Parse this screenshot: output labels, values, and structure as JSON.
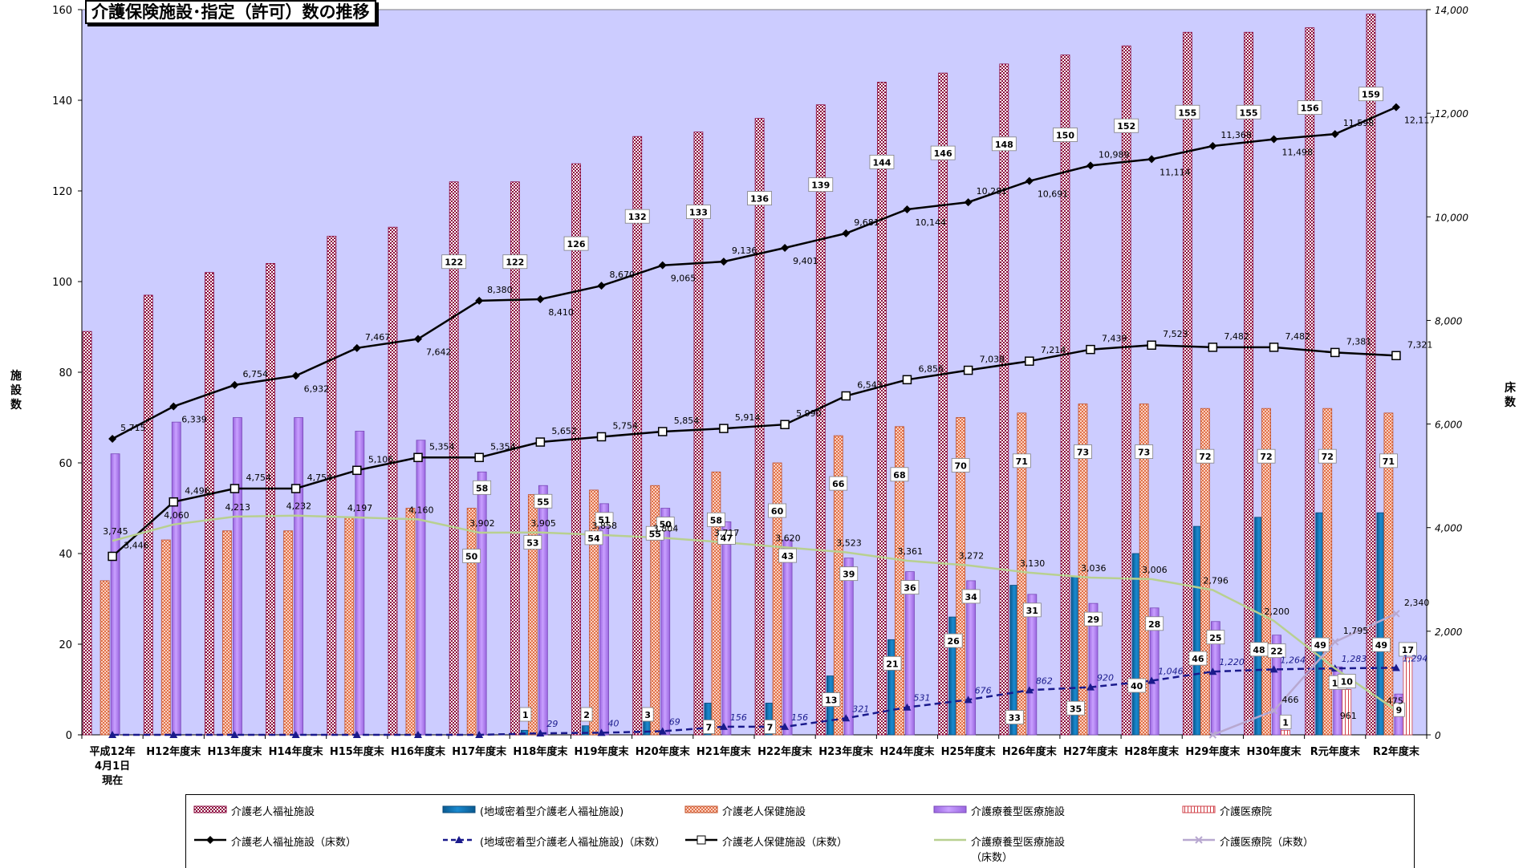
{
  "chart_data": {
    "type": "bar",
    "title": "介護保険施設･指定（許可）数の推移",
    "y_left_label": "施設数",
    "y_right_label": "床数",
    "y_left_range": [
      0,
      160
    ],
    "y_left_ticks": [
      "0",
      "20",
      "40",
      "60",
      "80",
      "100",
      "120",
      "140",
      "160"
    ],
    "y_right_range": [
      0,
      14000
    ],
    "y_right_ticks": [
      "0",
      "2,000",
      "4,000",
      "6,000",
      "8,000",
      "10,000",
      "12,000",
      "14,000"
    ],
    "categories": [
      [
        "平成12年",
        "4月1日",
        "現在"
      ],
      [
        "H12年度末"
      ],
      [
        "H13年度末"
      ],
      [
        "H14年度末"
      ],
      [
        "H15年度末"
      ],
      [
        "H16年度末"
      ],
      [
        "H17年度末"
      ],
      [
        "H18年度末"
      ],
      [
        "H19年度末"
      ],
      [
        "H20年度末"
      ],
      [
        "H21年度末"
      ],
      [
        "H22年度末"
      ],
      [
        "H23年度末"
      ],
      [
        "H24年度末"
      ],
      [
        "H25年度末"
      ],
      [
        "H26年度末"
      ],
      [
        "H27年度末"
      ],
      [
        "H28年度末"
      ],
      [
        "H29年度末"
      ],
      [
        "H30年度末"
      ],
      [
        "R元年度末"
      ],
      [
        "R2年度末"
      ]
    ],
    "grid": false,
    "legend_position": "bottom",
    "bar_series": [
      {
        "name": "介護老人福祉施設",
        "color": "#8b0a3c",
        "values": [
          89,
          97,
          102,
          104,
          110,
          112,
          122,
          122,
          126,
          132,
          133,
          136,
          139,
          144,
          146,
          148,
          150,
          152,
          155,
          155,
          156,
          159
        ],
        "labels": [
          null,
          null,
          null,
          null,
          null,
          null,
          "122",
          "122",
          "126",
          "132",
          "133",
          "136",
          "139",
          "144",
          "146",
          "148",
          "150",
          "152",
          "155",
          "155",
          "156",
          "159"
        ]
      },
      {
        "name": "(地域密着型介護老人福祉施設)",
        "color": "#0a6aa8",
        "values": [
          0,
          0,
          0,
          0,
          0,
          0,
          0,
          1,
          2,
          3,
          7,
          7,
          13,
          21,
          26,
          33,
          35,
          40,
          46,
          48,
          49,
          49
        ],
        "labels": [
          null,
          null,
          null,
          null,
          null,
          null,
          null,
          "1",
          "2",
          "3",
          "7",
          "7",
          "13",
          "21",
          "26",
          "33",
          "35",
          "40",
          "46",
          "48",
          "49",
          "49"
        ]
      },
      {
        "name": "介護老人保健施設",
        "color": "#e07048",
        "values": [
          34,
          43,
          45,
          45,
          48,
          50,
          50,
          53,
          54,
          55,
          58,
          60,
          66,
          68,
          70,
          71,
          73,
          73,
          72,
          72,
          72,
          71
        ],
        "labels": [
          null,
          null,
          null,
          null,
          null,
          null,
          "50",
          "53",
          "54",
          "55",
          "58",
          "60",
          "66",
          "68",
          "70",
          "71",
          "73",
          "73",
          "72",
          "72",
          "72",
          "71"
        ]
      },
      {
        "name": "介護療養型医療施設",
        "color": "#b184f0",
        "values": [
          62,
          69,
          70,
          70,
          67,
          65,
          58,
          55,
          51,
          50,
          47,
          43,
          39,
          36,
          34,
          31,
          29,
          28,
          25,
          22,
          15,
          9
        ],
        "labels": [
          null,
          null,
          null,
          null,
          null,
          null,
          "58",
          "55",
          "51",
          "50",
          "47",
          "43",
          "39",
          "36",
          "34",
          "31",
          "29",
          "28",
          "25",
          "22",
          "15",
          "9"
        ]
      },
      {
        "name": "介護医療院",
        "color": "#d04048",
        "values": [
          null,
          null,
          null,
          null,
          null,
          null,
          null,
          null,
          null,
          null,
          null,
          null,
          null,
          null,
          null,
          null,
          null,
          null,
          null,
          1,
          10,
          17
        ],
        "labels": [
          null,
          null,
          null,
          null,
          null,
          null,
          null,
          null,
          null,
          null,
          null,
          null,
          null,
          null,
          null,
          null,
          null,
          null,
          null,
          "1",
          "10",
          "17"
        ]
      }
    ],
    "line_series": [
      {
        "name": "介護老人福祉施設（床数）",
        "color": "#000000",
        "style": "solid",
        "marker": "diamond",
        "values": [
          5715,
          6339,
          6754,
          6932,
          7467,
          7642,
          8380,
          8410,
          8670,
          9065,
          9136,
          9401,
          9681,
          10144,
          10281,
          10691,
          10989,
          11114,
          11368,
          11498,
          11598,
          12117
        ],
        "labels": [
          "5,715",
          "6,339",
          "6,754",
          "6,932",
          "7,467",
          "7,642",
          "8,380",
          "8,410",
          "8,670",
          "9,065",
          "9,136",
          "9,401",
          "9,681",
          "10,144",
          "10,281",
          "10,691",
          "10,989",
          "11,114",
          "11,368",
          "11,498",
          "11,598",
          "12,117"
        ]
      },
      {
        "name": "(地域密着型介護老人福祉施設)（床数）",
        "color": "#1a1a8c",
        "style": "dashed",
        "marker": "triangle",
        "values": [
          0,
          0,
          0,
          0,
          0,
          0,
          0,
          29,
          40,
          69,
          156,
          156,
          321,
          531,
          676,
          862,
          920,
          1046,
          1220,
          1264,
          1283,
          1294
        ],
        "labels": [
          null,
          null,
          null,
          null,
          null,
          null,
          null,
          "29",
          "40",
          "69",
          "156",
          "156",
          "321",
          "531",
          "676",
          "862",
          "920",
          "1,046",
          "1,220",
          "1,264",
          "1,283",
          "1,294"
        ]
      },
      {
        "name": "介護老人保健施設（床数）",
        "color": "#000000",
        "style": "solid",
        "marker": "square",
        "values": [
          3446,
          4496,
          4754,
          4754,
          5106,
          5354,
          5354,
          5652,
          5754,
          5854,
          5914,
          5990,
          6543,
          6856,
          7038,
          7214,
          7439,
          7523,
          7482,
          7482,
          7381,
          7321
        ],
        "labels": [
          "3,446",
          "4,496",
          "4,754",
          "4,754",
          "5,106",
          "5,354",
          "5,354",
          "5,652",
          "5,754",
          "5,854",
          "5,914",
          "5,990",
          "6,543",
          "6,856",
          "7,038",
          "7,214",
          "7,439",
          "7,523",
          "7,482",
          "7,482",
          "7,381",
          "7,321"
        ]
      },
      {
        "name": "介護療養型医療施設\n（床数）",
        "color": "#b8d090",
        "style": "solid",
        "marker": "none",
        "values": [
          3745,
          4060,
          4213,
          4232,
          4197,
          4160,
          3902,
          3905,
          3858,
          3804,
          3717,
          3620,
          3523,
          3361,
          3272,
          3130,
          3036,
          3006,
          2796,
          2200,
          1283,
          475
        ],
        "labels": [
          "3,745",
          "4,060",
          "4,213",
          "4,232",
          "4,197",
          "4,160",
          "3,902",
          "3,905",
          "3,858",
          "3,804",
          "3,717",
          "3,620",
          "3,523",
          "3,361",
          "3,272",
          "3,130",
          "3,036",
          "3,006",
          "2,796",
          "2,200",
          null,
          "475"
        ]
      },
      {
        "name": "介護医療院（床数）",
        "color": "#b8a8d0",
        "style": "solid",
        "marker": "x",
        "values": [
          null,
          null,
          null,
          null,
          null,
          null,
          null,
          null,
          null,
          null,
          null,
          null,
          null,
          null,
          null,
          null,
          null,
          null,
          0,
          466,
          1795,
          2340
        ],
        "labels": [
          null,
          null,
          null,
          null,
          null,
          null,
          null,
          null,
          null,
          null,
          null,
          null,
          null,
          null,
          null,
          null,
          null,
          null,
          null,
          "466",
          "1,795",
          "2,340"
        ]
      }
    ],
    "extra_labels": [
      {
        "series": 4,
        "index": 20,
        "text": "961"
      }
    ]
  },
  "legend": [
    {
      "label": "介護老人福祉施設",
      "kind": "bar",
      "series": 0
    },
    {
      "label": "(地域密着型介護老人福祉施設)",
      "kind": "bar",
      "series": 1
    },
    {
      "label": "介護老人保健施設",
      "kind": "bar",
      "series": 2
    },
    {
      "label": "介護療養型医療施設",
      "kind": "bar",
      "series": 3
    },
    {
      "label": "介護医療院",
      "kind": "bar",
      "series": 4
    },
    {
      "label": "介護老人福祉施設（床数）",
      "kind": "line",
      "series": 0
    },
    {
      "label": "(地域密着型介護老人福祉施設)（床数）",
      "kind": "line",
      "series": 1
    },
    {
      "label": "介護老人保健施設（床数）",
      "kind": "line",
      "series": 2
    },
    {
      "label": "介護療養型医療施設",
      "label2": "（床数）",
      "kind": "line",
      "series": 3
    },
    {
      "label": "介護医療院（床数）",
      "kind": "line",
      "series": 4
    }
  ]
}
